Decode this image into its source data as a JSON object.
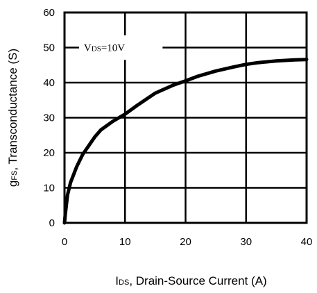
{
  "chart_data": {
    "type": "line",
    "xlabel": {
      "symbol": "I",
      "subscript": "DS",
      "text": ", Drain-Source Current (A)"
    },
    "ylabel": {
      "symbol": "g",
      "subscript": "FS",
      "text": ", Transconductance (S)"
    },
    "annotation": {
      "symbol": "V",
      "subscript": "DS",
      "text": "=10V"
    },
    "xlim": [
      0,
      40
    ],
    "ylim": [
      0,
      60
    ],
    "xticks": [
      "0",
      "10",
      "20",
      "30",
      "40"
    ],
    "yticks": [
      "0",
      "10",
      "20",
      "30",
      "40",
      "50",
      "60"
    ],
    "grid": true,
    "series": [
      {
        "color": "#000000",
        "x": [
          0.1,
          0.3,
          0.5,
          1,
          2,
          3,
          4,
          5,
          6,
          8,
          10,
          12,
          15,
          18,
          20,
          22,
          25,
          28,
          30,
          32,
          35,
          38,
          40
        ],
        "y": [
          2,
          5,
          8,
          11.5,
          16,
          19.5,
          22,
          24.5,
          26.5,
          29,
          31,
          33.5,
          37,
          39.3,
          40.5,
          41.8,
          43.3,
          44.5,
          45.2,
          45.7,
          46.2,
          46.5,
          46.6
        ]
      }
    ]
  }
}
